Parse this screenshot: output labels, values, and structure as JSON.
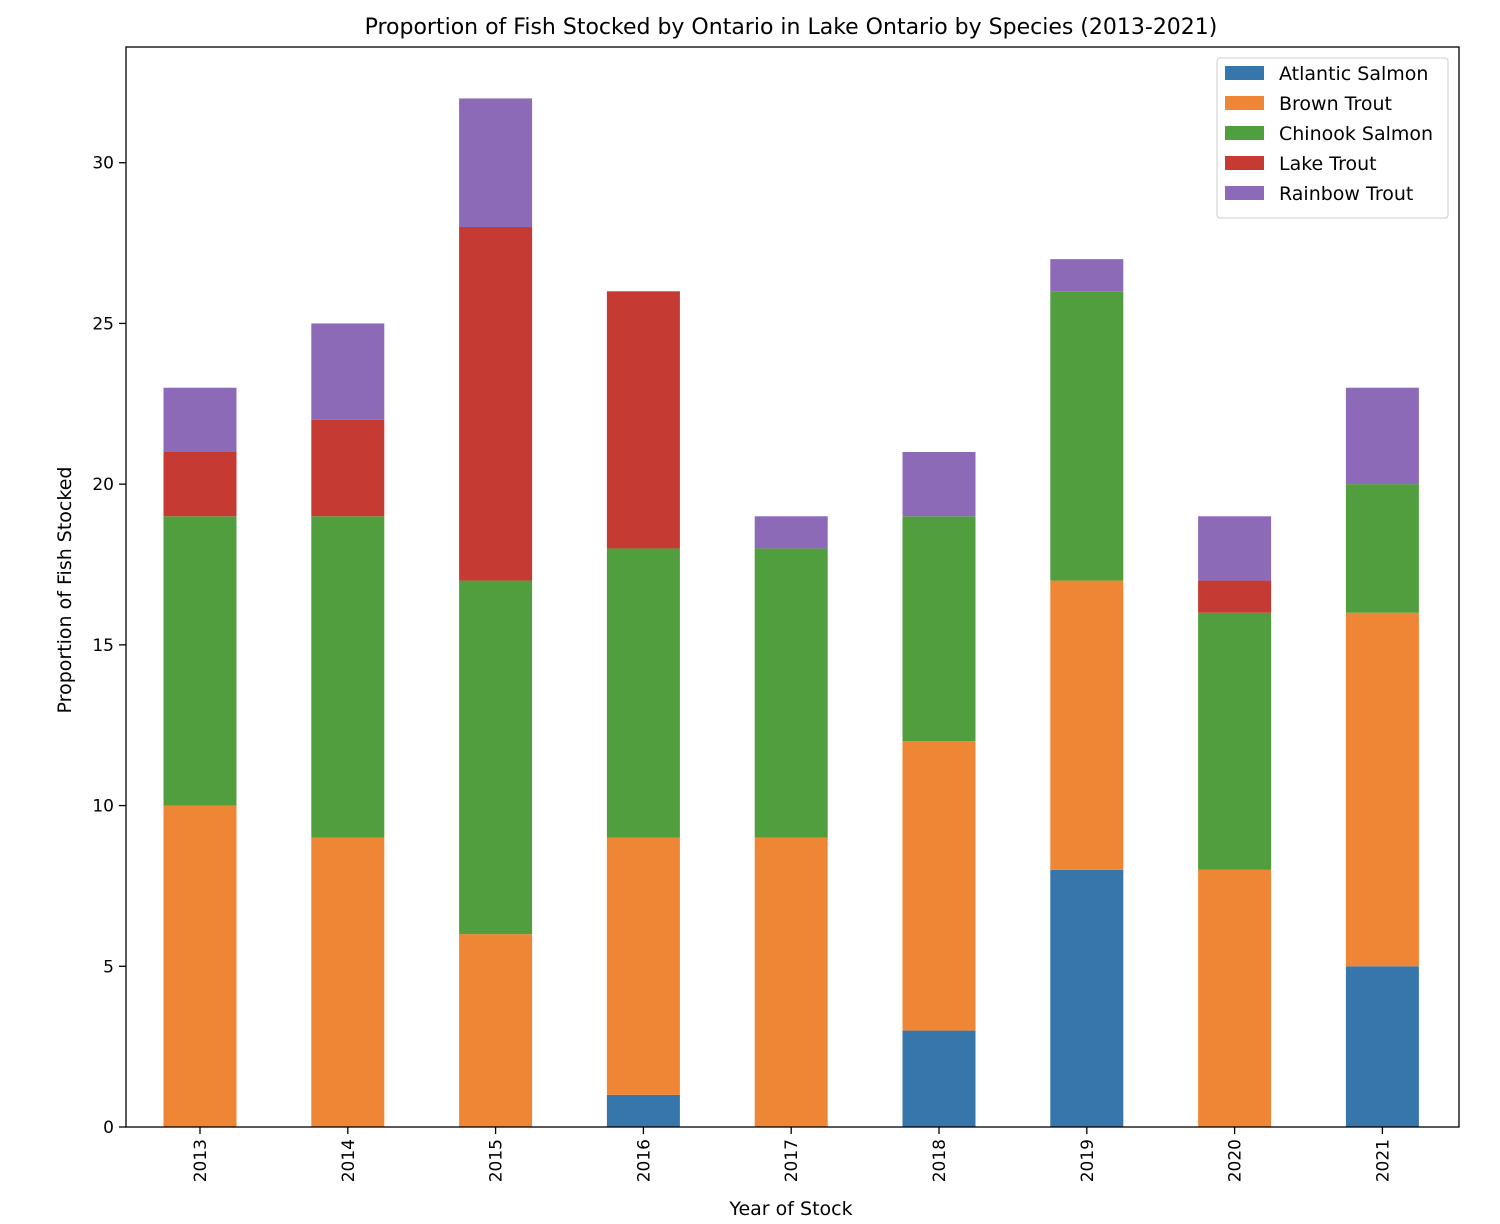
{
  "chart_data": {
    "type": "bar",
    "stacked": true,
    "title": "Proportion of Fish Stocked by Ontario in Lake Ontario by Species (2013-2021)",
    "xlabel": "Year of Stock",
    "ylabel": "Proportion of Fish Stocked",
    "categories": [
      "2013",
      "2014",
      "2015",
      "2016",
      "2017",
      "2018",
      "2019",
      "2020",
      "2021"
    ],
    "ylim": [
      0,
      33.6
    ],
    "yticks": [
      0,
      5,
      10,
      15,
      20,
      25,
      30
    ],
    "grid": false,
    "legend_position": "top-right",
    "series": [
      {
        "name": "Atlantic Salmon",
        "color": "#3776ab",
        "values": [
          0,
          0,
          0,
          1,
          0,
          3,
          8,
          0,
          5
        ]
      },
      {
        "name": "Brown Trout",
        "color": "#ef8636",
        "values": [
          10,
          9,
          6,
          8,
          9,
          9,
          9,
          8,
          11
        ]
      },
      {
        "name": "Chinook Salmon",
        "color": "#519e3e",
        "values": [
          9,
          10,
          11,
          9,
          9,
          7,
          9,
          8,
          4
        ]
      },
      {
        "name": "Lake Trout",
        "color": "#c53a32",
        "values": [
          2,
          3,
          11,
          8,
          0,
          0,
          0,
          1,
          0
        ]
      },
      {
        "name": "Rainbow Trout",
        "color": "#8d6ab8",
        "values": [
          2,
          3,
          4,
          0,
          1,
          2,
          1,
          2,
          3
        ]
      }
    ]
  }
}
